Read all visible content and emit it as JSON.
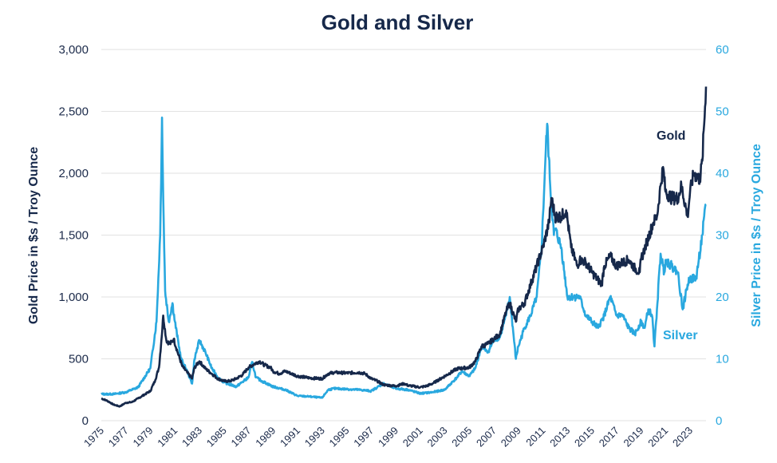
{
  "chart_data": {
    "type": "line",
    "title": "Gold and Silver",
    "xlabel": "",
    "ylabel": "Gold Price in $s / Troy Ounce",
    "y2label": "Silver Price in $s / Troy Ounce",
    "xlim": [
      1975,
      2024.3
    ],
    "ylim": [
      0,
      3000
    ],
    "y2lim": [
      0,
      60
    ],
    "yticks": [
      "0",
      "500",
      "1,000",
      "1,500",
      "2,000",
      "2,500",
      "3,000"
    ],
    "y2ticks": [
      "0",
      "10",
      "20",
      "30",
      "40",
      "50",
      "60"
    ],
    "xticks": [
      "1975",
      "1977",
      "1979",
      "1981",
      "1983",
      "1985",
      "1987",
      "1989",
      "1991",
      "1993",
      "1995",
      "1997",
      "1999",
      "2001",
      "2003",
      "2005",
      "2007",
      "2009",
      "2011",
      "2013",
      "2015",
      "2017",
      "2019",
      "2021",
      "2023"
    ],
    "colors": {
      "gold": "#16284a",
      "silver": "#29a8df",
      "grid": "#e2e2e2"
    },
    "series": [
      {
        "name": "Gold",
        "axis": "left",
        "x": [
          1975,
          1975.5,
          1976,
          1976.5,
          1977,
          1977.5,
          1978,
          1978.5,
          1979,
          1979.4,
          1979.7,
          1979.9,
          1980.05,
          1980.3,
          1980.6,
          1980.9,
          1981.2,
          1981.6,
          1982,
          1982.4,
          1982.6,
          1983,
          1983.5,
          1984,
          1984.5,
          1985,
          1985.5,
          1986,
          1986.5,
          1987,
          1987.5,
          1987.9,
          1988.3,
          1988.8,
          1989,
          1989.5,
          1990,
          1990.5,
          1991,
          1992,
          1993,
          1993.5,
          1994,
          1995,
          1996,
          1996.5,
          1997,
          1997.5,
          1998,
          1999,
          1999.7,
          2000,
          2001,
          2001.5,
          2002,
          2003,
          2004,
          2005,
          2005.5,
          2006,
          2006.5,
          2007,
          2007.5,
          2008,
          2008.3,
          2008.8,
          2009,
          2009.5,
          2010,
          2010.5,
          2011,
          2011.5,
          2011.7,
          2012,
          2012.5,
          2012.9,
          2013.3,
          2013.8,
          2014,
          2014.5,
          2015,
          2015.8,
          2016,
          2016.5,
          2017,
          2017.5,
          2018,
          2018.5,
          2018.9,
          2019,
          2019.5,
          2020,
          2020.3,
          2020.6,
          2020.8,
          2021,
          2021.5,
          2022,
          2022.3,
          2022.8,
          2023,
          2023.3,
          2023.8,
          2024,
          2024.3
        ],
        "values": [
          180,
          160,
          130,
          115,
          145,
          150,
          180,
          210,
          240,
          330,
          430,
          650,
          850,
          650,
          620,
          660,
          560,
          440,
          390,
          340,
          430,
          480,
          420,
          380,
          340,
          320,
          320,
          340,
          370,
          430,
          460,
          480,
          450,
          430,
          400,
          380,
          400,
          380,
          360,
          345,
          340,
          380,
          390,
          385,
          390,
          380,
          340,
          320,
          290,
          280,
          300,
          285,
          270,
          280,
          300,
          360,
          420,
          430,
          480,
          600,
          620,
          660,
          700,
          880,
          950,
          800,
          900,
          950,
          1100,
          1250,
          1400,
          1600,
          1800,
          1650,
          1650,
          1700,
          1400,
          1250,
          1300,
          1280,
          1200,
          1100,
          1250,
          1330,
          1250,
          1280,
          1300,
          1230,
          1200,
          1300,
          1450,
          1600,
          1650,
          1900,
          2050,
          1850,
          1800,
          1800,
          1900,
          1650,
          1850,
          2000,
          1950,
          2100,
          2700
        ]
      },
      {
        "name": "Silver",
        "axis": "right",
        "x": [
          1975,
          1976,
          1977,
          1978,
          1979,
          1979.5,
          1979.8,
          1979.95,
          1980.05,
          1980.2,
          1980.5,
          1980.8,
          1981,
          1981.5,
          1982,
          1982.4,
          1982.6,
          1983,
          1983.5,
          1984,
          1984.5,
          1985,
          1986,
          1987,
          1987.3,
          1987.6,
          1988,
          1989,
          1990,
          1991,
          1992,
          1993,
          1993.5,
          1994,
          1995,
          1996,
          1997,
          1998,
          1999,
          2000,
          2001,
          2002,
          2003,
          2004,
          2004.4,
          2005,
          2005.5,
          2006,
          2006.5,
          2007,
          2007.5,
          2008,
          2008.3,
          2008.8,
          2009,
          2009.5,
          2010,
          2010.5,
          2010.9,
          2011.2,
          2011.35,
          2011.6,
          2011.9,
          2012,
          2012.5,
          2013,
          2013.5,
          2014,
          2014.5,
          2015,
          2015.5,
          2016,
          2016.5,
          2017,
          2017.5,
          2018,
          2018.5,
          2019,
          2019.3,
          2019.6,
          2019.9,
          2020.1,
          2020.3,
          2020.6,
          2020.9,
          2021,
          2021.5,
          2022,
          2022.4,
          2022.8,
          2023,
          2023.5,
          2024,
          2024.3
        ],
        "values": [
          4.3,
          4.3,
          4.6,
          5.4,
          8.5,
          16,
          30,
          49,
          36,
          21,
          16,
          19,
          16,
          10,
          8,
          6,
          10,
          13,
          11,
          8.5,
          7,
          6.2,
          5.5,
          7,
          9.5,
          7,
          6.5,
          5.5,
          5,
          4,
          3.9,
          3.7,
          5,
          5.2,
          5.1,
          5,
          4.8,
          6,
          5.2,
          5,
          4.4,
          4.6,
          5,
          7,
          8,
          7.2,
          8.5,
          12,
          11,
          13,
          13.5,
          17,
          20,
          10,
          12,
          15,
          17,
          20,
          28,
          42,
          48,
          38,
          30,
          31,
          28,
          20,
          20,
          20,
          17,
          16,
          15,
          17,
          20,
          17,
          17,
          15,
          14,
          16,
          15,
          18,
          17,
          12,
          18,
          27,
          24,
          26,
          25,
          24,
          18,
          22,
          23,
          23,
          30,
          35
        ]
      }
    ],
    "annotations": [
      "Gold",
      "Silver"
    ]
  }
}
